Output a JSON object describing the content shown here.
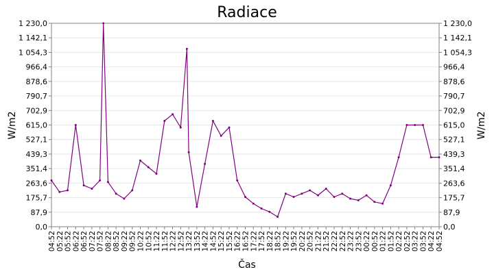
{
  "chart_data": {
    "type": "line",
    "title": "Radiace",
    "xlabel": "Čas",
    "ylabel": "W/m2",
    "ylabel_right": "W/m2",
    "ylim": [
      0,
      1230
    ],
    "yticks": [
      "0,0",
      "87,9",
      "175,7",
      "263,6",
      "351,4",
      "439,3",
      "527,1",
      "615,0",
      "702,9",
      "790,7",
      "878,6",
      "966,4",
      "1 054,3",
      "1 142,1",
      "1 230,0"
    ],
    "xticks": [
      "04:52",
      "05:22",
      "05:52",
      "06:22",
      "06:52",
      "07:22",
      "07:52",
      "08:22",
      "08:52",
      "09:22",
      "09:52",
      "10:22",
      "10:52",
      "11:22",
      "11:52",
      "12:22",
      "12:52",
      "13:22",
      "13:52",
      "14:22",
      "14:52",
      "15:22",
      "15:52",
      "16:22",
      "16:52",
      "17:22",
      "17:52",
      "18:22",
      "18:52",
      "19:22",
      "19:52",
      "20:22",
      "20:52",
      "21:22",
      "21:52",
      "22:22",
      "22:52",
      "23:22",
      "23:52",
      "00:22",
      "00:52",
      "01:22",
      "01:52",
      "02:22",
      "02:52",
      "03:22",
      "03:52",
      "04:22",
      "04:52"
    ],
    "grid": true,
    "legend": "none",
    "series": [
      {
        "color": "#800080",
        "x": [
          "04:52",
          "05:22",
          "05:52",
          "06:22",
          "06:52",
          "07:22",
          "07:52",
          "08:05",
          "08:22",
          "08:52",
          "09:22",
          "09:52",
          "10:22",
          "10:52",
          "11:22",
          "11:52",
          "12:22",
          "12:52",
          "13:15",
          "13:22",
          "13:52",
          "14:22",
          "14:52",
          "15:22",
          "15:52",
          "16:22",
          "16:52",
          "17:22",
          "17:52",
          "18:22",
          "18:52",
          "19:22",
          "19:52",
          "20:22",
          "20:52",
          "21:22",
          "21:52",
          "22:22",
          "22:52",
          "23:22",
          "23:52",
          "00:22",
          "00:52",
          "01:22",
          "01:52",
          "02:22",
          "02:52",
          "03:22",
          "03:52",
          "04:22",
          "04:52"
        ],
        "values": [
          280,
          210,
          220,
          615,
          250,
          230,
          280,
          1230,
          270,
          200,
          170,
          220,
          400,
          360,
          320,
          640,
          680,
          600,
          1075,
          450,
          120,
          380,
          640,
          550,
          600,
          280,
          180,
          140,
          110,
          90,
          60,
          200,
          180,
          200,
          220,
          190,
          230,
          180,
          200,
          170,
          160,
          190,
          150,
          140,
          250,
          420,
          615,
          615,
          615,
          420,
          420
        ]
      }
    ]
  }
}
